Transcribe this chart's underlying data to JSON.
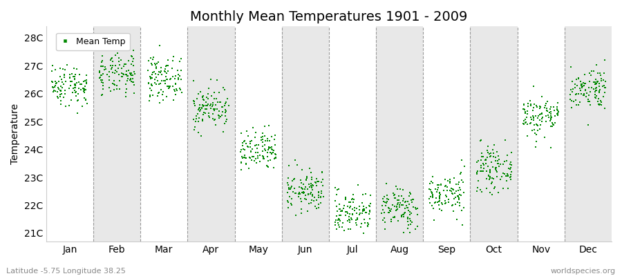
{
  "title": "Monthly Mean Temperatures 1901 - 2009",
  "ylabel": "Temperature",
  "xlabel_bottom_left": "Latitude -5.75 Longitude 38.25",
  "xlabel_bottom_right": "worldspecies.org",
  "ytick_labels": [
    "21C",
    "22C",
    "23C",
    "24C",
    "25C",
    "26C",
    "27C",
    "28C"
  ],
  "ytick_values": [
    21,
    22,
    23,
    24,
    25,
    26,
    27,
    28
  ],
  "ylim": [
    20.7,
    28.4
  ],
  "months": [
    "Jan",
    "Feb",
    "Mar",
    "Apr",
    "May",
    "Jun",
    "Jul",
    "Aug",
    "Sep",
    "Oct",
    "Nov",
    "Dec"
  ],
  "monthly_means": [
    26.3,
    26.65,
    26.55,
    25.5,
    23.9,
    22.5,
    21.75,
    21.9,
    22.4,
    23.3,
    25.2,
    26.2
  ],
  "monthly_stds": [
    0.38,
    0.38,
    0.38,
    0.38,
    0.38,
    0.38,
    0.38,
    0.38,
    0.38,
    0.38,
    0.38,
    0.38
  ],
  "n_years": 109,
  "dot_color": "#008800",
  "dot_size": 2,
  "background_color": "#ffffff",
  "alternating_band_color": "#e8e8e8",
  "legend_label": "Mean Temp",
  "title_fontsize": 14,
  "axis_fontsize": 10,
  "tick_fontsize": 10,
  "seed": 42
}
